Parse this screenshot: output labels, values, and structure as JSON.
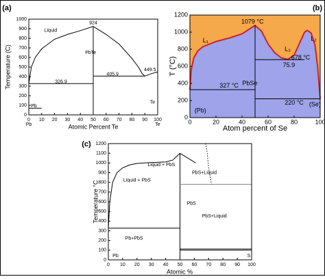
{
  "chart_data": [
    {
      "type": "line",
      "panel": "(a)",
      "xlabel": "Atomic Percent Te",
      "ylabel": "Temperature (C)",
      "xlim": [
        0,
        100
      ],
      "ylim": [
        0,
        1000
      ],
      "xticks": [
        0,
        10,
        20,
        30,
        40,
        50,
        60,
        70,
        80,
        90,
        100
      ],
      "yticks": [
        0,
        100,
        200,
        300,
        400,
        500,
        600,
        700,
        800,
        900,
        1000
      ],
      "annotations": [
        "Liquid",
        "924",
        "PbTe",
        "326.9",
        "405.9",
        "449.5",
        "Pb",
        "Te",
        "Pb",
        "Te"
      ],
      "series": [
        {
          "color": "#000000",
          "x": [
            0,
            2,
            5,
            10,
            20,
            30,
            40,
            50
          ],
          "values": [
            327,
            500,
            600,
            690,
            790,
            840,
            880,
            924
          ]
        },
        {
          "color": "#000000",
          "x": [
            50,
            60,
            70,
            80,
            85,
            88,
            90,
            95,
            100
          ],
          "values": [
            924,
            840,
            740,
            590,
            500,
            430,
            405,
            430,
            449
          ]
        },
        {
          "color": "#000000",
          "x": [
            0,
            50
          ],
          "values": [
            327,
            327
          ]
        },
        {
          "color": "#000000",
          "x": [
            50,
            90
          ],
          "values": [
            405,
            405
          ]
        },
        {
          "color": "#000000",
          "x": [
            50,
            50
          ],
          "values": [
            0,
            924
          ]
        },
        {
          "color": "#000000",
          "x": [
            0,
            10
          ],
          "values": [
            70,
            70
          ]
        }
      ]
    },
    {
      "type": "area",
      "panel": "(b)",
      "xlabel": "Atom percent of Se",
      "ylabel": "T (°C)",
      "background": "#f5a94a",
      "xlim": [
        0,
        100
      ],
      "ylim": [
        0,
        1200
      ],
      "xticks": [
        0,
        20,
        40,
        60,
        80,
        100
      ],
      "yticks": [
        0,
        200,
        400,
        600,
        800,
        1000,
        1200
      ],
      "annotations": [
        "1079 °C",
        "327 °C",
        "678 °C",
        "220 °C",
        "75.9",
        "(Pb)",
        "(Se)",
        "PbSe",
        "L₁",
        "L₃",
        "L₂"
      ],
      "series": [
        {
          "color": "#d0202a",
          "fill": "#9ea3ea",
          "x": [
            0,
            1,
            3,
            6,
            10,
            20,
            30,
            40,
            50,
            55,
            60,
            65,
            70,
            75,
            80,
            85,
            88,
            90,
            93,
            96,
            98,
            100
          ],
          "values": [
            327,
            560,
            700,
            780,
            830,
            890,
            930,
            980,
            1079,
            1010,
            860,
            760,
            700,
            680,
            730,
            900,
            1000,
            1020,
            990,
            850,
            600,
            220
          ]
        },
        {
          "color": "#000000",
          "x": [
            0,
            50
          ],
          "values": [
            327,
            327
          ]
        },
        {
          "color": "#000000",
          "x": [
            50,
            50
          ],
          "values": [
            0,
            1079
          ]
        },
        {
          "color": "#000000",
          "x": [
            50,
            88
          ],
          "values": [
            678,
            678
          ]
        },
        {
          "color": "#000000",
          "x": [
            50,
            100
          ],
          "values": [
            220,
            220
          ]
        }
      ]
    },
    {
      "type": "line",
      "panel": "(c)",
      "xlabel": "Atomic %",
      "ylabel": "Temperature °C",
      "xlim": [
        0,
        100
      ],
      "ylim": [
        0,
        1200
      ],
      "xticks": [
        0,
        10,
        20,
        30,
        40,
        50,
        60,
        70,
        80,
        90,
        100
      ],
      "yticks": [
        0,
        100,
        200,
        300,
        400,
        500,
        600,
        700,
        800,
        900,
        1000,
        1100,
        1200
      ],
      "annotations": [
        "Liquid + PbS",
        "Liquid + PbS",
        "PbS+Liquid",
        "PbS",
        "PbS+Liquid",
        "Pb+PbS",
        "Pb",
        "S"
      ],
      "series": [
        {
          "color": "#000000",
          "x": [
            0,
            1,
            3,
            6,
            10,
            15,
            20,
            30,
            40,
            45,
            50
          ],
          "values": [
            327,
            600,
            800,
            900,
            950,
            980,
            995,
            1005,
            1010,
            1030,
            1100
          ]
        },
        {
          "color": "#000000",
          "x": [
            0,
            50
          ],
          "values": [
            327,
            327
          ]
        },
        {
          "color": "#000000",
          "x": [
            50,
            50
          ],
          "values": [
            0,
            1100
          ]
        },
        {
          "color": "#000000",
          "x": [
            50,
            61
          ],
          "values": [
            1100,
            1000
          ]
        },
        {
          "color": "#888888",
          "x": [
            50,
            100
          ],
          "values": [
            780,
            780
          ]
        },
        {
          "color": "#000000",
          "x": [
            50,
            100
          ],
          "values": [
            112,
            112
          ]
        },
        {
          "color": "#000000",
          "x": [
            50,
            100
          ],
          "values": [
            100,
            100
          ]
        },
        {
          "color": "#000000",
          "x": [
            68,
            69,
            70,
            72
          ],
          "values": [
            1200,
            1100,
            950,
            780
          ]
        }
      ]
    }
  ]
}
